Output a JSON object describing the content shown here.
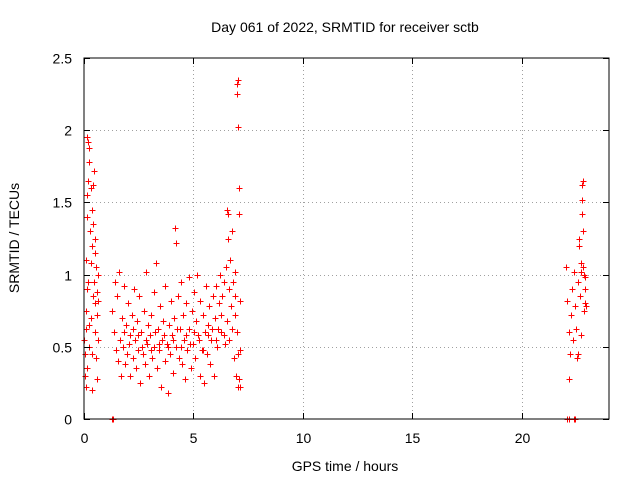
{
  "chart_data": {
    "type": "scatter",
    "title": "Day 061 of 2022, SRMTID for receiver sctb",
    "xlabel": "GPS time / hours",
    "ylabel": "SRMTID / TECUs",
    "xlim": [
      0,
      24
    ],
    "ylim": [
      0,
      2.5
    ],
    "grid": true,
    "x_ticks": [
      0,
      5,
      10,
      15,
      20
    ],
    "x_tick_labels": [
      "0",
      "5",
      "10",
      "15",
      "20"
    ],
    "y_ticks": [
      0,
      0.5,
      1,
      1.5,
      2,
      2.5
    ],
    "y_tick_labels": [
      "0",
      "0.5",
      "1",
      "1.5",
      "2",
      "2.5"
    ],
    "marker": "+",
    "color": "#ff0000",
    "series": [
      {
        "name": "SRMTID",
        "points": [
          [
            0.02,
            0.55
          ],
          [
            0.05,
            0.3
          ],
          [
            0.05,
            0.45
          ],
          [
            0.08,
            0.22
          ],
          [
            0.08,
            0.75
          ],
          [
            0.1,
            1.1
          ],
          [
            0.1,
            0.62
          ],
          [
            0.12,
            1.55
          ],
          [
            0.12,
            0.9
          ],
          [
            0.15,
            1.95
          ],
          [
            0.15,
            1.4
          ],
          [
            0.15,
            0.35
          ],
          [
            0.18,
            1.92
          ],
          [
            0.2,
            1.65
          ],
          [
            0.2,
            0.95
          ],
          [
            0.22,
            1.78
          ],
          [
            0.22,
            0.5
          ],
          [
            0.25,
            1.88
          ],
          [
            0.28,
            1.3
          ],
          [
            0.3,
            1.6
          ],
          [
            0.3,
            0.7
          ],
          [
            0.32,
            1.08
          ],
          [
            0.35,
            1.45
          ],
          [
            0.35,
            0.45
          ],
          [
            0.38,
            1.2
          ],
          [
            0.4,
            1.62
          ],
          [
            0.4,
            0.85
          ],
          [
            0.42,
            1.35
          ],
          [
            0.45,
            0.95
          ],
          [
            0.45,
            1.72
          ],
          [
            0.48,
            1.15
          ],
          [
            0.5,
            0.6
          ],
          [
            0.5,
            1.25
          ],
          [
            0.52,
            0.8
          ],
          [
            0.55,
            1.05
          ],
          [
            0.55,
            0.42
          ],
          [
            0.58,
            0.88
          ],
          [
            0.6,
            0.28
          ],
          [
            0.6,
            0.72
          ],
          [
            0.62,
            1.0
          ],
          [
            0.62,
            0.55
          ],
          [
            0.65,
            0.82
          ],
          [
            0.35,
            0.2
          ],
          [
            0.25,
            0.65
          ],
          [
            1.3,
            0.0
          ],
          [
            1.32,
            0.0
          ],
          [
            1.3,
            0.75
          ],
          [
            1.35,
            0.6
          ],
          [
            1.4,
            0.95
          ],
          [
            1.45,
            0.48
          ],
          [
            1.5,
            0.85
          ],
          [
            1.55,
            0.4
          ],
          [
            1.6,
            1.02
          ],
          [
            1.65,
            0.55
          ],
          [
            1.7,
            0.3
          ],
          [
            1.72,
            0.7
          ],
          [
            1.78,
            0.5
          ],
          [
            1.82,
            0.92
          ],
          [
            1.88,
            0.38
          ],
          [
            1.92,
            0.65
          ],
          [
            1.98,
            0.45
          ],
          [
            2.02,
            0.8
          ],
          [
            2.08,
            0.3
          ],
          [
            2.12,
            0.58
          ],
          [
            2.18,
            0.72
          ],
          [
            2.22,
            0.42
          ],
          [
            2.28,
            0.9
          ],
          [
            2.32,
            0.55
          ],
          [
            2.38,
            0.35
          ],
          [
            2.42,
            0.68
          ],
          [
            2.48,
            0.48
          ],
          [
            2.52,
            0.85
          ],
          [
            2.58,
            0.25
          ],
          [
            2.62,
            0.6
          ],
          [
            2.68,
            0.45
          ],
          [
            2.72,
            0.75
          ],
          [
            2.78,
            0.38
          ],
          [
            2.82,
            1.02
          ],
          [
            2.88,
            0.52
          ],
          [
            2.92,
            0.65
          ],
          [
            2.98,
            0.3
          ],
          [
            3.02,
            0.58
          ],
          [
            3.08,
            0.72
          ],
          [
            3.12,
            0.42
          ],
          [
            3.18,
            0.88
          ],
          [
            3.22,
            0.5
          ],
          [
            3.28,
            1.08
          ],
          [
            3.32,
            0.35
          ],
          [
            3.38,
            0.62
          ],
          [
            3.42,
            0.48
          ],
          [
            3.48,
            0.78
          ],
          [
            3.52,
            0.22
          ],
          [
            3.58,
            0.55
          ],
          [
            3.62,
            0.68
          ],
          [
            3.68,
            0.4
          ],
          [
            3.72,
            0.92
          ],
          [
            3.78,
            0.52
          ],
          [
            3.82,
            0.18
          ],
          [
            3.88,
            0.65
          ],
          [
            3.92,
            0.45
          ],
          [
            3.98,
            0.82
          ],
          [
            4.02,
            0.58
          ],
          [
            4.08,
            0.32
          ],
          [
            4.12,
            0.7
          ],
          [
            4.18,
            1.32
          ],
          [
            4.2,
            1.22
          ],
          [
            4.22,
            0.5
          ],
          [
            4.28,
            0.85
          ],
          [
            4.32,
            0.42
          ],
          [
            4.38,
            0.62
          ],
          [
            4.42,
            0.95
          ],
          [
            4.48,
            0.38
          ],
          [
            4.52,
            0.72
          ],
          [
            4.58,
            0.55
          ],
          [
            4.62,
            0.28
          ],
          [
            4.68,
            0.8
          ],
          [
            4.72,
            0.48
          ],
          [
            4.78,
            0.98
          ],
          [
            4.82,
            0.62
          ],
          [
            4.88,
            0.35
          ],
          [
            4.92,
            0.75
          ],
          [
            4.98,
            0.52
          ],
          [
            5.02,
            0.88
          ],
          [
            5.08,
            0.42
          ],
          [
            5.12,
            0.68
          ],
          [
            5.18,
            1.0
          ],
          [
            5.22,
            0.58
          ],
          [
            5.28,
            0.3
          ],
          [
            5.32,
            0.82
          ],
          [
            5.38,
            0.48
          ],
          [
            5.42,
            0.72
          ],
          [
            5.48,
            0.25
          ],
          [
            5.52,
            0.6
          ],
          [
            5.58,
            0.92
          ],
          [
            5.62,
            0.45
          ],
          [
            5.68,
            0.65
          ],
          [
            5.72,
            0.78
          ],
          [
            5.78,
            0.38
          ],
          [
            5.82,
            0.55
          ],
          [
            5.88,
            0.85
          ],
          [
            5.92,
            0.3
          ],
          [
            5.98,
            0.7
          ],
          [
            6.02,
            0.92
          ],
          [
            6.08,
            0.5
          ],
          [
            6.12,
            0.62
          ],
          [
            6.18,
            0.8
          ],
          [
            6.22,
            1.0
          ],
          [
            6.28,
            0.72
          ],
          [
            6.32,
            0.85
          ],
          [
            6.38,
            0.58
          ],
          [
            6.42,
            0.95
          ],
          [
            6.48,
            1.05
          ],
          [
            6.52,
            0.68
          ],
          [
            6.55,
            1.45
          ],
          [
            6.58,
            1.25
          ],
          [
            6.6,
            1.42
          ],
          [
            6.62,
            0.9
          ],
          [
            6.65,
            0.55
          ],
          [
            6.68,
            1.1
          ],
          [
            6.72,
            0.78
          ],
          [
            6.75,
            1.3
          ],
          [
            6.78,
            0.62
          ],
          [
            6.82,
            0.95
          ],
          [
            6.85,
            0.42
          ],
          [
            6.88,
            0.72
          ],
          [
            6.9,
            1.02
          ],
          [
            6.92,
            0.85
          ],
          [
            6.95,
            0.3
          ],
          [
            6.98,
            0.6
          ],
          [
            7.0,
            2.32
          ],
          [
            7.0,
            2.25
          ],
          [
            7.02,
            2.35
          ],
          [
            7.02,
            0.22
          ],
          [
            7.05,
            0.45
          ],
          [
            7.05,
            2.02
          ],
          [
            7.08,
            1.6
          ],
          [
            7.1,
            1.42
          ],
          [
            7.1,
            0.28
          ],
          [
            7.12,
            0.82
          ],
          [
            7.12,
            0.22
          ],
          [
            7.15,
            0.48
          ],
          [
            1.85,
            0.6
          ],
          [
            2.05,
            0.52
          ],
          [
            2.25,
            0.62
          ],
          [
            2.45,
            0.58
          ],
          [
            2.65,
            0.5
          ],
          [
            2.85,
            0.55
          ],
          [
            3.05,
            0.48
          ],
          [
            3.25,
            0.6
          ],
          [
            3.45,
            0.52
          ],
          [
            3.65,
            0.58
          ],
          [
            3.85,
            0.5
          ],
          [
            4.05,
            0.55
          ],
          [
            4.25,
            0.62
          ],
          [
            4.45,
            0.5
          ],
          [
            4.65,
            0.58
          ],
          [
            4.85,
            0.52
          ],
          [
            5.05,
            0.6
          ],
          [
            5.25,
            0.55
          ],
          [
            5.45,
            0.48
          ],
          [
            5.65,
            0.58
          ],
          [
            5.85,
            0.62
          ],
          [
            6.05,
            0.55
          ],
          [
            6.25,
            0.6
          ],
          [
            6.45,
            0.52
          ],
          [
            22.1,
            0.0
          ],
          [
            22.15,
            0.0
          ],
          [
            22.4,
            0.0
          ],
          [
            22.45,
            0.0
          ],
          [
            22.05,
            1.05
          ],
          [
            22.1,
            0.82
          ],
          [
            22.15,
            0.6
          ],
          [
            22.18,
            0.28
          ],
          [
            22.2,
            0.45
          ],
          [
            22.25,
            0.72
          ],
          [
            22.3,
            0.9
          ],
          [
            22.35,
            0.55
          ],
          [
            22.4,
            1.02
          ],
          [
            22.45,
            0.78
          ],
          [
            22.5,
            0.62
          ],
          [
            22.55,
            0.42
          ],
          [
            22.6,
            0.95
          ],
          [
            22.62,
            1.2
          ],
          [
            22.65,
            1.25
          ],
          [
            22.68,
            0.85
          ],
          [
            22.7,
            1.08
          ],
          [
            22.72,
            1.02
          ],
          [
            22.75,
            1.62
          ],
          [
            22.75,
            1.52
          ],
          [
            22.78,
            1.42
          ],
          [
            22.8,
            1.65
          ],
          [
            22.8,
            1.05
          ],
          [
            22.82,
            1.3
          ],
          [
            22.85,
            1.0
          ],
          [
            22.85,
            0.75
          ],
          [
            22.88,
            0.9
          ],
          [
            22.9,
            0.8
          ],
          [
            22.92,
            0.98
          ],
          [
            22.95,
            0.78
          ],
          [
            22.6,
            0.45
          ],
          [
            22.7,
            0.58
          ]
        ]
      }
    ]
  }
}
